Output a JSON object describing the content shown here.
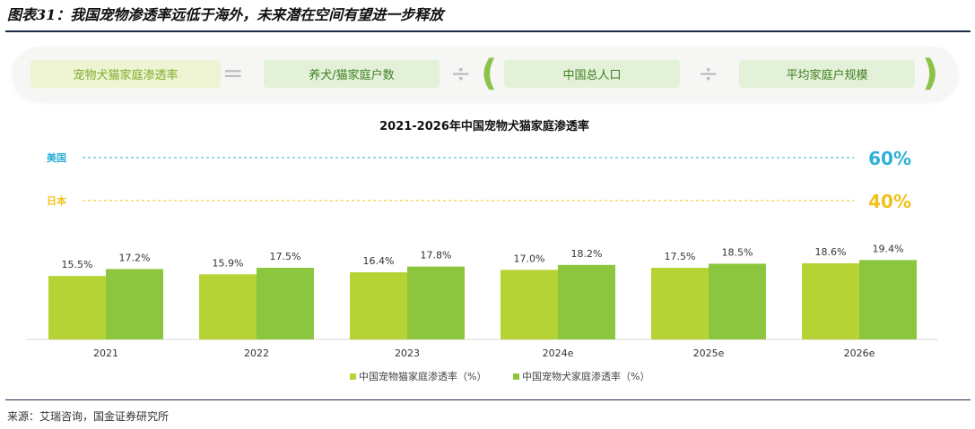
{
  "figure_title": "图表31：我国宠物渗透率远低于海外，未来潜在空间有望进一步释放",
  "formula": {
    "result": "宠物犬猫家庭渗透率",
    "eq": "=",
    "numerator": "养犬/猫家庭户数",
    "div1": "÷",
    "open_paren": "(",
    "denominator": "中国总人口",
    "div2": "÷",
    "avg": "平均家庭户规模",
    "close_paren": ")"
  },
  "source": "来源：艾瑞咨询，国金证券研究所",
  "colors": {
    "cat": "#b5d334",
    "dog": "#8bc63e",
    "usa": "#2fb0d8",
    "japan": "#f2c019"
  },
  "chart_data": {
    "type": "bar",
    "title": "2021-2026年中国宠物犬猫家庭渗透率",
    "categories": [
      "2021",
      "2022",
      "2023",
      "2024e",
      "2025e",
      "2026e"
    ],
    "series": [
      {
        "name": "中国宠物猫家庭渗透率（%）",
        "values": [
          15.5,
          15.9,
          16.4,
          17.0,
          17.5,
          18.6
        ],
        "labels": [
          "15.5%",
          "15.9%",
          "16.4%",
          "17.0%",
          "17.5%",
          "18.6%"
        ]
      },
      {
        "name": "中国宠物犬家庭渗透率（%）",
        "values": [
          17.2,
          17.5,
          17.8,
          18.2,
          18.5,
          19.4
        ],
        "labels": [
          "17.2%",
          "17.5%",
          "17.8%",
          "18.2%",
          "18.5%",
          "19.4%"
        ]
      }
    ],
    "reference_lines": [
      {
        "name": "美国",
        "value": 60,
        "label": "60%"
      },
      {
        "name": "日本",
        "value": 40,
        "label": "40%"
      }
    ],
    "legend_position": "bottom-center",
    "grid": false
  }
}
